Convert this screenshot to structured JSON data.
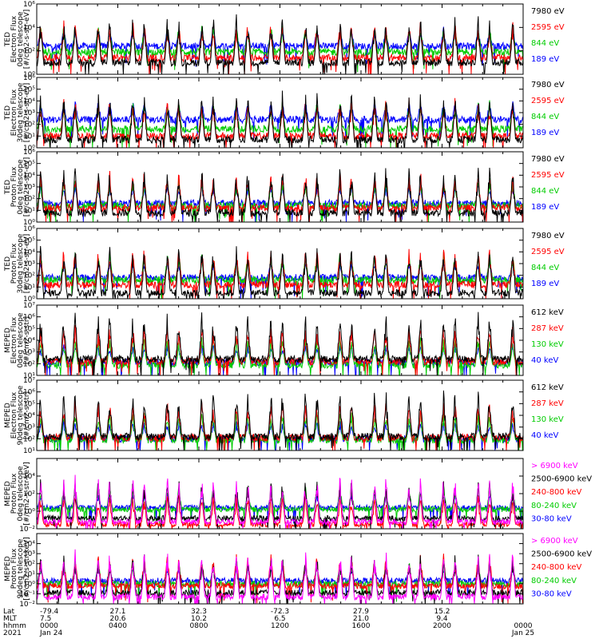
{
  "chart_data": [
    {
      "type": "line",
      "ylabel": [
        "TED",
        "Electron Flux",
        "0deg telescope",
        "[#/cm2-s-str-eV]"
      ],
      "ylog": true,
      "ylim_exp": [
        0,
        6
      ],
      "ticks": [
        "10⁰",
        "10²",
        "10⁴",
        "10⁶"
      ],
      "tick_exp": [
        0,
        2,
        4,
        6
      ],
      "floor_exp": [
        1.0,
        1.4,
        1.9,
        2.4
      ],
      "series": [
        {
          "name": "7980 eV",
          "color": "#000000"
        },
        {
          "name": "2595 eV",
          "color": "#ff0000"
        },
        {
          "name": "844 eV",
          "color": "#00cc00"
        },
        {
          "name": "189 eV",
          "color": "#0000ff"
        }
      ]
    },
    {
      "type": "line",
      "ylabel": [
        "TED",
        "Electron Flux",
        "30deg telescope",
        "[#/cm2-s-str-eV]"
      ],
      "ylog": true,
      "ylim_exp": [
        0,
        6
      ],
      "ticks": [
        "10⁰",
        "10¹",
        "10²",
        "10³",
        "10⁴",
        "10⁵",
        "10⁶"
      ],
      "tick_exp": [
        0,
        1,
        2,
        3,
        4,
        5,
        6
      ],
      "floor_exp": [
        0.7,
        1.0,
        1.6,
        2.4
      ],
      "series": [
        {
          "name": "7980 eV",
          "color": "#000000"
        },
        {
          "name": "2595 eV",
          "color": "#ff0000"
        },
        {
          "name": "844 eV",
          "color": "#00cc00"
        },
        {
          "name": "189 eV",
          "color": "#0000ff"
        }
      ]
    },
    {
      "type": "line",
      "ylabel": [
        "TED",
        "Proton Flux",
        "0deg telescope",
        "[#/cm2-s-str-eV]"
      ],
      "ylog": true,
      "ylim_exp": [
        0,
        6
      ],
      "ticks": [
        "10⁰",
        "10¹",
        "10²",
        "10³",
        "10⁴",
        "10⁵",
        "10⁶"
      ],
      "tick_exp": [
        0,
        1,
        2,
        3,
        4,
        5,
        6
      ],
      "floor_exp": [
        0.8,
        1.2,
        1.4,
        1.6
      ],
      "series": [
        {
          "name": "7980 eV",
          "color": "#000000"
        },
        {
          "name": "2595 eV",
          "color": "#ff0000"
        },
        {
          "name": "844 eV",
          "color": "#00cc00"
        },
        {
          "name": "189 eV",
          "color": "#0000ff"
        }
      ]
    },
    {
      "type": "line",
      "ylabel": [
        "TED",
        "Proton Flux",
        "30deg telescope",
        "[#/cm2-s-str-eV]"
      ],
      "ylog": true,
      "ylim_exp": [
        0,
        6
      ],
      "ticks": [
        "10⁰",
        "10¹",
        "10²",
        "10³",
        "10⁴",
        "10⁵",
        "10⁶"
      ],
      "tick_exp": [
        0,
        1,
        2,
        3,
        4,
        5,
        6
      ],
      "floor_exp": [
        0.5,
        1.2,
        1.6,
        1.8
      ],
      "series": [
        {
          "name": "7980 eV",
          "color": "#000000"
        },
        {
          "name": "2595 eV",
          "color": "#ff0000"
        },
        {
          "name": "844 eV",
          "color": "#00cc00"
        },
        {
          "name": "189 eV",
          "color": "#0000ff"
        }
      ]
    },
    {
      "type": "line",
      "ylabel": [
        "MEPED",
        "Electron Flux",
        "0deg telescope",
        "[#/cm2-s-str]"
      ],
      "ylog": true,
      "ylim_exp": [
        1,
        7
      ],
      "ticks": [
        "10¹",
        "10²",
        "10³",
        "10⁴",
        "10⁵",
        "10⁶",
        "10⁷"
      ],
      "tick_exp": [
        1,
        2,
        3,
        4,
        5,
        6,
        7
      ],
      "floor_exp": [
        2.4,
        2.2,
        1.9,
        2.1
      ],
      "series": [
        {
          "name": "612 keV",
          "color": "#000000"
        },
        {
          "name": "287 keV",
          "color": "#ff0000"
        },
        {
          "name": "130 keV",
          "color": "#00cc00"
        },
        {
          "name": "40 keV",
          "color": "#0000ff"
        }
      ]
    },
    {
      "type": "line",
      "ylabel": [
        "MEPED",
        "Electron Flux",
        "90deg telescope",
        "[#/cm2-s-str]"
      ],
      "ylog": true,
      "ylim_exp": [
        1,
        7
      ],
      "ticks": [
        "10¹",
        "10²",
        "10³",
        "10⁴",
        "10⁵",
        "10⁶",
        "10⁷"
      ],
      "tick_exp": [
        1,
        2,
        3,
        4,
        5,
        6,
        7
      ],
      "floor_exp": [
        2.2,
        2.1,
        1.9,
        2.0
      ],
      "series": [
        {
          "name": "612 keV",
          "color": "#000000"
        },
        {
          "name": "287 keV",
          "color": "#ff0000"
        },
        {
          "name": "130 keV",
          "color": "#00cc00"
        },
        {
          "name": "40 keV",
          "color": "#0000ff"
        }
      ]
    },
    {
      "type": "line",
      "ylabel": [
        "MEPED",
        "Proton Flux",
        "0deg telescope",
        "[#/cm2-s-str-keV]"
      ],
      "ylog": true,
      "ylim_exp": [
        -2,
        6
      ],
      "ticks": [
        "10⁻²",
        "10⁰",
        "10²",
        "10⁴"
      ],
      "tick_exp": [
        -2,
        0,
        2,
        4
      ],
      "floor_exp": [
        -1.2,
        -0.8,
        -1.5,
        0.2,
        0.4
      ],
      "series": [
        {
          "name": "> 6900 keV",
          "color": "#ff00ff"
        },
        {
          "name": "2500-6900 keV",
          "color": "#000000"
        },
        {
          "name": "240-800 keV",
          "color": "#ff0000"
        },
        {
          "name": "80-240 keV",
          "color": "#00cc00"
        },
        {
          "name": "30-80 keV",
          "color": "#0000ff"
        }
      ]
    },
    {
      "type": "line",
      "ylabel": [
        "MEPED",
        "Proton Flux",
        "90deg telescope",
        "[#/cm2-s-str-keV]"
      ],
      "ylog": true,
      "ylim_exp": [
        -2,
        5
      ],
      "ticks": [
        "10⁻²",
        "10⁻¹",
        "10⁰",
        "10¹",
        "10²",
        "10³",
        "10⁴"
      ],
      "tick_exp": [
        -2,
        -1,
        0,
        1,
        2,
        3,
        4
      ],
      "floor_exp": [
        -1.3,
        -0.9,
        -0.2,
        0.0,
        0.3
      ],
      "series": [
        {
          "name": "> 6900 keV",
          "color": "#ff00ff"
        },
        {
          "name": "2500-6900 keV",
          "color": "#000000"
        },
        {
          "name": "240-800 keV",
          "color": "#ff0000"
        },
        {
          "name": "80-240 keV",
          "color": "#00cc00"
        },
        {
          "name": "30-80 keV",
          "color": "#0000ff"
        }
      ]
    }
  ],
  "x_axis": {
    "row_labels": [
      "Lat",
      "MLT",
      "hhmm",
      "2021"
    ],
    "ticks": [
      {
        "lat": "-79.4",
        "mlt": "7.5",
        "hhmm": "0000",
        "date": "Jan 24"
      },
      {
        "lat": "27.1",
        "mlt": "20.6",
        "hhmm": "0400",
        "date": ""
      },
      {
        "lat": "32.3",
        "mlt": "10.2",
        "hhmm": "0800",
        "date": ""
      },
      {
        "lat": "-72.3",
        "mlt": "6.5",
        "hhmm": "1200",
        "date": ""
      },
      {
        "lat": "27.9",
        "mlt": "21.0",
        "hhmm": "1600",
        "date": ""
      },
      {
        "lat": "15.2",
        "mlt": "9.4",
        "hhmm": "2000",
        "date": ""
      },
      {
        "lat": "",
        "mlt": "",
        "hhmm": "0000",
        "date": "Jan 25"
      }
    ]
  }
}
